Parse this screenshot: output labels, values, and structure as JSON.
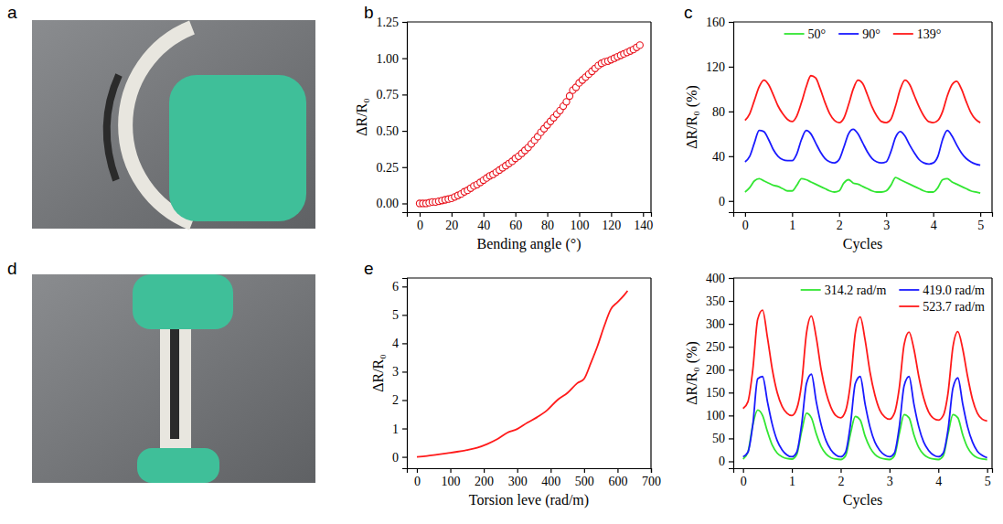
{
  "panel_labels": [
    "a",
    "b",
    "c",
    "d",
    "e"
  ],
  "chart_data": [
    {
      "type": "scatter",
      "xlabel": "Bending angle (°)",
      "ylabel": "ΔR/R₀",
      "color": "#e8101a",
      "marker": "circle",
      "x": [
        0,
        2,
        4,
        6,
        8,
        10,
        12,
        14,
        16,
        18,
        20,
        22,
        24,
        26,
        28,
        30,
        32,
        34,
        36,
        38,
        40,
        42,
        44,
        46,
        48,
        50,
        52,
        54,
        56,
        58,
        60,
        62,
        64,
        66,
        68,
        70,
        72,
        74,
        76,
        78,
        80,
        82,
        84,
        86,
        88,
        90,
        92,
        94,
        96,
        98,
        100,
        102,
        104,
        106,
        108,
        110,
        112,
        114,
        116,
        118,
        120,
        122,
        124,
        126,
        128,
        130,
        132,
        134,
        136,
        138
      ],
      "values": [
        0,
        0,
        0,
        0.005,
        0.01,
        0.01,
        0.015,
        0.02,
        0.025,
        0.03,
        0.035,
        0.045,
        0.055,
        0.065,
        0.08,
        0.09,
        0.105,
        0.12,
        0.13,
        0.145,
        0.16,
        0.175,
        0.19,
        0.2,
        0.215,
        0.23,
        0.245,
        0.26,
        0.275,
        0.29,
        0.31,
        0.325,
        0.345,
        0.365,
        0.385,
        0.41,
        0.435,
        0.46,
        0.49,
        0.515,
        0.54,
        0.565,
        0.59,
        0.615,
        0.64,
        0.67,
        0.7,
        0.74,
        0.78,
        0.8,
        0.83,
        0.85,
        0.87,
        0.89,
        0.91,
        0.93,
        0.95,
        0.965,
        0.975,
        0.98,
        0.99,
        1.0,
        1.01,
        1.02,
        1.03,
        1.04,
        1.05,
        1.06,
        1.075,
        1.09
      ],
      "xlim": [
        -8,
        145
      ],
      "xticks": [
        0,
        20,
        40,
        60,
        80,
        100,
        120,
        140
      ],
      "ylim": [
        -0.06,
        1.25
      ],
      "yticks": [
        {
          "value": 0,
          "label": "0.00"
        },
        {
          "value": 0.25,
          "label": "0.25"
        },
        {
          "value": 0.5,
          "label": "0.50"
        },
        {
          "value": 0.75,
          "label": "0.75"
        },
        {
          "value": 1,
          "label": "1.00"
        },
        {
          "value": 1.25,
          "label": "1.25"
        }
      ]
    },
    {
      "type": "line",
      "xlabel": "Cycles",
      "ylabel": "ΔR/R₀ (%)",
      "legend": "top",
      "x": [
        0,
        0.1,
        0.2,
        0.3,
        0.4,
        0.5,
        0.6,
        0.7,
        0.8,
        0.9,
        1,
        1.1,
        1.2,
        1.3,
        1.4,
        1.5,
        1.6,
        1.7,
        1.8,
        1.9,
        2,
        2.1,
        2.2,
        2.3,
        2.4,
        2.5,
        2.6,
        2.7,
        2.8,
        2.9,
        3,
        3.1,
        3.2,
        3.3,
        3.4,
        3.5,
        3.6,
        3.7,
        3.8,
        3.9,
        4,
        4.1,
        4.2,
        4.3,
        4.4,
        4.5,
        4.6,
        4.7,
        4.8,
        4.9,
        5
      ],
      "series": [
        {
          "name": "50°",
          "color": "#33e633",
          "values": [
            8,
            12,
            18,
            20,
            18,
            16,
            14,
            13,
            11,
            9,
            9,
            14,
            20,
            19,
            17,
            15,
            13,
            11,
            9,
            8,
            9,
            16,
            19,
            16,
            15,
            13,
            11,
            9,
            8,
            8,
            9,
            14,
            21,
            19,
            17,
            15,
            13,
            11,
            9,
            8,
            8,
            12,
            19,
            20,
            17,
            15,
            13,
            11,
            9,
            8,
            7
          ]
        },
        {
          "name": "90°",
          "color": "#1a1aff",
          "values": [
            35,
            40,
            52,
            63,
            62,
            55,
            46,
            40,
            37,
            36,
            36,
            42,
            55,
            63,
            60,
            52,
            44,
            38,
            35,
            34,
            37,
            48,
            60,
            64,
            60,
            52,
            44,
            38,
            35,
            34,
            35,
            44,
            57,
            62,
            58,
            50,
            43,
            37,
            34,
            33,
            34,
            40,
            55,
            63,
            58,
            50,
            43,
            38,
            35,
            33,
            32
          ]
        },
        {
          "name": "139°",
          "color": "#ff1a1a",
          "values": [
            72,
            78,
            90,
            102,
            108,
            104,
            95,
            85,
            78,
            73,
            71,
            76,
            88,
            102,
            112,
            110,
            100,
            88,
            78,
            72,
            70,
            74,
            86,
            100,
            108,
            105,
            95,
            84,
            76,
            71,
            70,
            73,
            85,
            100,
            108,
            104,
            94,
            84,
            76,
            71,
            70,
            72,
            80,
            94,
            104,
            107,
            100,
            89,
            79,
            73,
            70
          ]
        }
      ],
      "xlim": [
        -0.25,
        5.25
      ],
      "xticks": [
        0,
        1,
        2,
        3,
        4,
        5
      ],
      "ylim": [
        -10,
        160
      ],
      "yticks": [
        0,
        40,
        80,
        120,
        160
      ]
    },
    {
      "type": "line",
      "xlabel": "Torsion leve (rad/m)",
      "ylabel": "ΔR/R₀",
      "color": "#ff1a1a",
      "x": [
        0,
        30,
        60,
        90,
        120,
        150,
        180,
        210,
        240,
        270,
        300,
        330,
        360,
        390,
        420,
        450,
        480,
        500,
        520,
        540,
        560,
        580,
        600,
        620,
        630
      ],
      "values": [
        0,
        0.03,
        0.08,
        0.13,
        0.18,
        0.24,
        0.32,
        0.45,
        0.62,
        0.85,
        0.98,
        1.2,
        1.4,
        1.65,
        2.0,
        2.25,
        2.6,
        2.75,
        3.3,
        3.9,
        4.6,
        5.2,
        5.45,
        5.7,
        5.85
      ],
      "xlim": [
        -30,
        700
      ],
      "xticks": [
        0,
        100,
        200,
        300,
        400,
        500,
        600,
        700
      ],
      "ylim": [
        -0.4,
        6.3
      ],
      "yticks": [
        0,
        1,
        2,
        3,
        4,
        5,
        6
      ]
    },
    {
      "type": "line",
      "xlabel": "Cycles",
      "ylabel": "ΔR/R₀ (%)",
      "legend": "top-right",
      "x": [
        0,
        0.1,
        0.2,
        0.3,
        0.4,
        0.5,
        0.6,
        0.7,
        0.8,
        0.9,
        1,
        1.1,
        1.2,
        1.3,
        1.4,
        1.5,
        1.6,
        1.7,
        1.8,
        1.9,
        2,
        2.1,
        2.2,
        2.3,
        2.4,
        2.5,
        2.6,
        2.7,
        2.8,
        2.9,
        3,
        3.1,
        3.2,
        3.3,
        3.4,
        3.5,
        3.6,
        3.7,
        3.8,
        3.9,
        4,
        4.1,
        4.2,
        4.3,
        4.4,
        4.5,
        4.6,
        4.7,
        4.8,
        4.9,
        5
      ],
      "series": [
        {
          "name": "314.2 rad/m",
          "color": "#33e633",
          "values": [
            5,
            20,
            80,
            112,
            100,
            65,
            35,
            18,
            10,
            6,
            5,
            15,
            65,
            105,
            95,
            60,
            32,
            16,
            8,
            5,
            4,
            12,
            60,
            98,
            90,
            55,
            30,
            15,
            8,
            5,
            4,
            12,
            60,
            102,
            95,
            58,
            30,
            15,
            8,
            5,
            4,
            12,
            60,
            102,
            95,
            58,
            30,
            15,
            8,
            5,
            4
          ]
        },
        {
          "name": "419.0 rad/m",
          "color": "#1a1aff",
          "values": [
            10,
            20,
            80,
            180,
            185,
            130,
            80,
            45,
            25,
            14,
            10,
            20,
            80,
            170,
            190,
            130,
            80,
            45,
            25,
            14,
            10,
            20,
            80,
            170,
            185,
            125,
            75,
            42,
            24,
            14,
            10,
            18,
            75,
            165,
            185,
            125,
            75,
            42,
            24,
            14,
            10,
            18,
            70,
            160,
            182,
            125,
            75,
            42,
            22,
            13,
            8
          ]
        },
        {
          "name": "523.7 rad/m",
          "color": "#ff1a1a",
          "values": [
            115,
            130,
            200,
            310,
            330,
            270,
            200,
            150,
            120,
            105,
            100,
            115,
            170,
            280,
            317,
            270,
            200,
            150,
            118,
            100,
            95,
            110,
            170,
            280,
            315,
            265,
            195,
            145,
            112,
            97,
            92,
            105,
            160,
            255,
            282,
            245,
            185,
            138,
            108,
            94,
            90,
            100,
            150,
            250,
            283,
            245,
            185,
            135,
            105,
            92,
            88
          ]
        }
      ],
      "xlim": [
        -0.2,
        5.1
      ],
      "xticks": [
        0,
        1,
        2,
        3,
        4,
        5
      ],
      "ylim": [
        -15,
        400
      ],
      "yticks": [
        0,
        50,
        100,
        150,
        200,
        250,
        300,
        350,
        400
      ]
    }
  ]
}
